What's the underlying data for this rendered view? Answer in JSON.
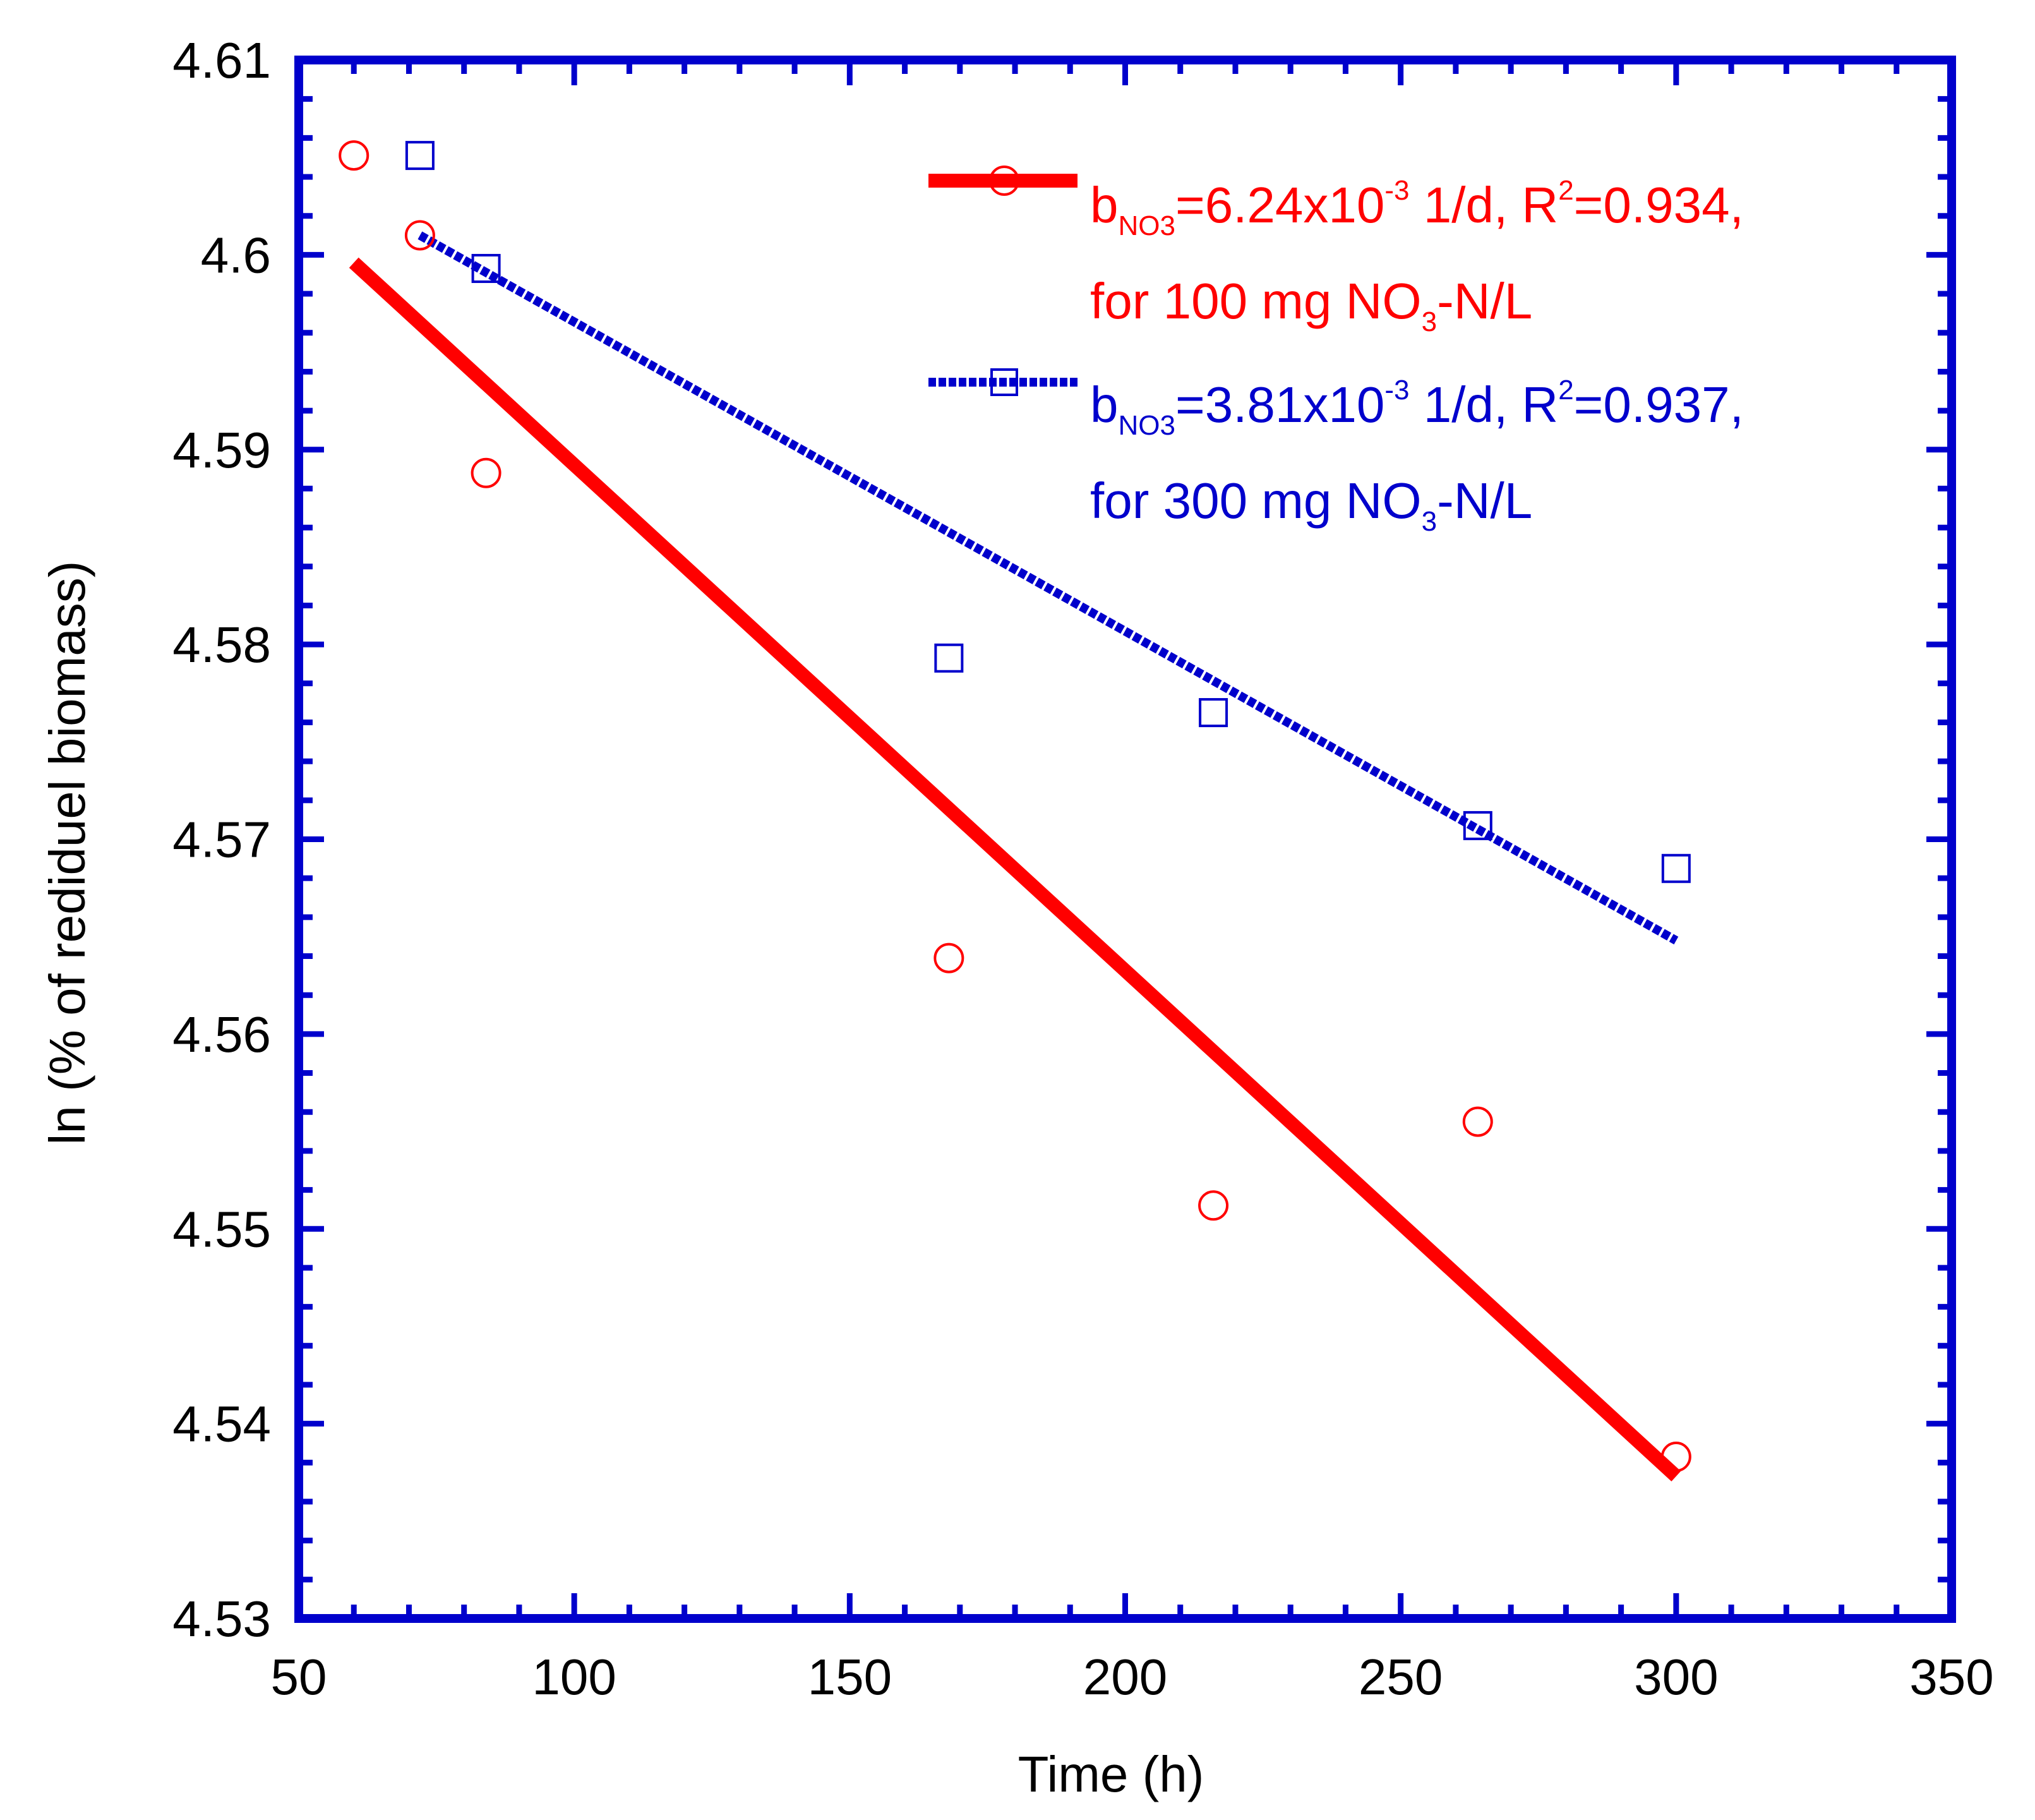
{
  "chart_data": {
    "type": "scatter",
    "title": "",
    "xlabel": "Time (h)",
    "ylabel": "ln (% of rediduel biomass)",
    "xlim": [
      50,
      350
    ],
    "ylim": [
      4.53,
      4.61
    ],
    "x_ticks": [
      50,
      100,
      150,
      200,
      250,
      300,
      350
    ],
    "y_ticks": [
      4.53,
      4.54,
      4.55,
      4.56,
      4.57,
      4.58,
      4.59,
      4.6,
      4.61
    ],
    "x_tick_labels": [
      "50",
      "100",
      "150",
      "200",
      "250",
      "300",
      "350"
    ],
    "y_tick_labels": [
      "4.53",
      "4.54",
      "4.55",
      "4.56",
      "4.57",
      "4.58",
      "4.59",
      "4.6",
      "4.61"
    ],
    "grid": false,
    "legend_position": "top-right",
    "frame_color": "#0000cc",
    "series": [
      {
        "name": "100 mg NO3-N/L",
        "color": "#ff0000",
        "marker": "circle",
        "line_style": "solid",
        "points": [
          {
            "x": 60,
            "y": 4.6051
          },
          {
            "x": 72,
            "y": 4.601
          },
          {
            "x": 84,
            "y": 4.5888
          },
          {
            "x": 168,
            "y": 4.5639
          },
          {
            "x": 216,
            "y": 4.5512
          },
          {
            "x": 264,
            "y": 4.5555
          },
          {
            "x": 300,
            "y": 4.5383
          }
        ],
        "fit": {
          "x": [
            60,
            300
          ],
          "y": [
            4.5996,
            4.5373
          ]
        },
        "legend": {
          "line1": {
            "b": "b",
            "sub": "NO3",
            "mid": "=6.24x10",
            "sup": "-3",
            "mid2": " 1/d, R",
            "sup2": "2",
            "end": "=0.934,"
          },
          "line2": {
            "pre": "for 100 mg NO",
            "sub": "3",
            "post": "-N/L"
          }
        }
      },
      {
        "name": "300 mg NO3-N/L",
        "color": "#0000cc",
        "marker": "square",
        "line_style": "dotted",
        "points": [
          {
            "x": 72,
            "y": 4.6051
          },
          {
            "x": 84,
            "y": 4.5993
          },
          {
            "x": 168,
            "y": 4.5793
          },
          {
            "x": 216,
            "y": 4.5765
          },
          {
            "x": 264,
            "y": 4.5707
          },
          {
            "x": 300,
            "y": 4.5685
          }
        ],
        "fit": {
          "x": [
            72,
            300
          ],
          "y": [
            4.601,
            4.5648
          ]
        },
        "legend": {
          "line1": {
            "b": "b",
            "sub": "NO3",
            "mid": "=3.81x10",
            "sup": "-3",
            "mid2": "  1/d, R",
            "sup2": "2",
            "end": "=0.937,"
          },
          "line2": {
            "pre": "for 300 mg NO",
            "sub": "3",
            "post": "-N/L"
          }
        }
      }
    ]
  }
}
